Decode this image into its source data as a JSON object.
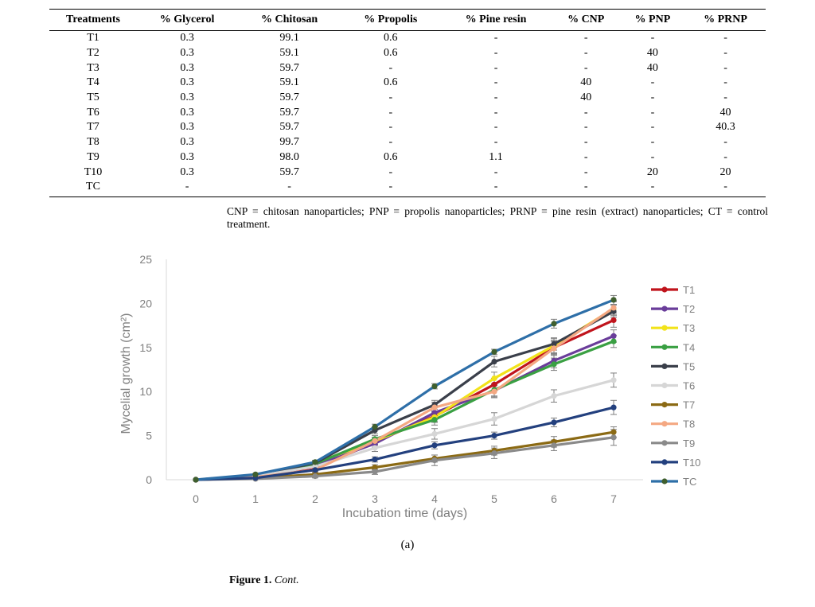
{
  "table": {
    "headers": [
      "Treatments",
      "% Glycerol",
      "% Chitosan",
      "% Propolis",
      "% Pine resin",
      "% CNP",
      "% PNP",
      "% PRNP"
    ],
    "rows": [
      [
        "T1",
        "0.3",
        "99.1",
        "0.6",
        "-",
        "-",
        "-",
        "-"
      ],
      [
        "T2",
        "0.3",
        "59.1",
        "0.6",
        "-",
        "-",
        "40",
        "-"
      ],
      [
        "T3",
        "0.3",
        "59.7",
        "-",
        "-",
        "-",
        "40",
        "-"
      ],
      [
        "T4",
        "0.3",
        "59.1",
        "0.6",
        "-",
        "40",
        "-",
        "-"
      ],
      [
        "T5",
        "0.3",
        "59.7",
        "-",
        "-",
        "40",
        "-",
        "-"
      ],
      [
        "T6",
        "0.3",
        "59.7",
        "-",
        "-",
        "-",
        "-",
        "40"
      ],
      [
        "T7",
        "0.3",
        "59.7",
        "-",
        "-",
        "-",
        "-",
        "40.3"
      ],
      [
        "T8",
        "0.3",
        "99.7",
        "-",
        "-",
        "-",
        "-",
        "-"
      ],
      [
        "T9",
        "0.3",
        "98.0",
        "0.6",
        "1.1",
        "-",
        "-",
        "-"
      ],
      [
        "T10",
        "0.3",
        "59.7",
        "-",
        "-",
        "-",
        "20",
        "20"
      ],
      [
        "TC",
        "-",
        "-",
        "-",
        "-",
        "-",
        "-",
        "-"
      ]
    ],
    "note": "CNP = chitosan nanoparticles; PNP = propolis nanoparticles; PRNP = pine resin (extract) nanoparticles; CT = control treatment."
  },
  "chart_data": {
    "type": "line",
    "xlabel": "Incubation time (days)",
    "ylabel": "Mycelial growth (cm²)",
    "xlim": [
      0,
      7
    ],
    "ylim": [
      0,
      25
    ],
    "x_ticks": [
      0,
      1,
      2,
      3,
      4,
      5,
      6,
      7
    ],
    "y_ticks": [
      0,
      5,
      10,
      15,
      20,
      25
    ],
    "grid": false,
    "legend_position": "right",
    "x": [
      0,
      1,
      2,
      3,
      4,
      5,
      6,
      7
    ],
    "series": [
      {
        "name": "T1",
        "color": "#c0141c",
        "values": [
          0,
          0.3,
          1.2,
          4.3,
          7.2,
          10.8,
          15.0,
          18.1
        ],
        "errors": [
          0,
          0.1,
          0.2,
          0.4,
          0.6,
          0.7,
          0.8,
          0.8
        ]
      },
      {
        "name": "T2",
        "color": "#6a3d9a",
        "values": [
          0,
          0.3,
          1.6,
          4.1,
          7.6,
          10.1,
          13.5,
          16.3
        ],
        "errors": [
          0,
          0.1,
          0.2,
          0.4,
          0.6,
          0.7,
          0.8,
          0.7
        ]
      },
      {
        "name": "T3",
        "color": "#f2e31a",
        "values": [
          0,
          0.4,
          1.9,
          4.4,
          7.1,
          11.5,
          15.2,
          19.4
        ],
        "errors": [
          0,
          0.1,
          0.2,
          0.4,
          0.6,
          0.7,
          0.8,
          0.8
        ]
      },
      {
        "name": "T4",
        "color": "#3aa043",
        "values": [
          0,
          0.4,
          1.8,
          4.6,
          6.8,
          10.2,
          13.1,
          15.7
        ],
        "errors": [
          0,
          0.1,
          0.2,
          0.4,
          0.6,
          0.7,
          0.7,
          0.7
        ]
      },
      {
        "name": "T5",
        "color": "#3a3f4a",
        "values": [
          0,
          0.5,
          1.9,
          5.6,
          8.5,
          13.4,
          15.4,
          19.1
        ],
        "errors": [
          0,
          0.1,
          0.2,
          0.4,
          0.5,
          0.6,
          0.7,
          0.7
        ]
      },
      {
        "name": "T6",
        "color": "#d6d6d6",
        "values": [
          0,
          0.4,
          1.5,
          3.6,
          5.2,
          6.9,
          9.5,
          11.3
        ],
        "errors": [
          0,
          0.1,
          0.2,
          0.4,
          0.6,
          0.7,
          0.7,
          0.8
        ]
      },
      {
        "name": "T7",
        "color": "#8b6a14",
        "values": [
          0,
          0.2,
          0.6,
          1.4,
          2.4,
          3.3,
          4.3,
          5.4
        ],
        "errors": [
          0,
          0.1,
          0.2,
          0.3,
          0.4,
          0.5,
          0.6,
          0.6
        ]
      },
      {
        "name": "T8",
        "color": "#f4a882",
        "values": [
          0,
          0.3,
          1.1,
          4.4,
          8.2,
          10.0,
          14.9,
          19.5
        ],
        "errors": [
          0,
          0.1,
          0.2,
          0.4,
          0.6,
          0.7,
          0.8,
          0.8
        ]
      },
      {
        "name": "T9",
        "color": "#8a8a8a",
        "values": [
          0,
          0.1,
          0.4,
          0.9,
          2.2,
          3.0,
          3.9,
          4.8
        ],
        "errors": [
          0,
          0.1,
          0.2,
          0.3,
          0.6,
          0.6,
          0.6,
          0.9
        ]
      },
      {
        "name": "T10",
        "color": "#23407e",
        "values": [
          0,
          0.2,
          1.1,
          2.3,
          3.9,
          5.0,
          6.5,
          8.2
        ],
        "errors": [
          0,
          0.1,
          0.2,
          0.3,
          0.4,
          0.4,
          0.5,
          0.8
        ]
      },
      {
        "name": "TC",
        "color": "#2e6fa8",
        "marker_color": "#3f5f2e",
        "values": [
          0,
          0.6,
          2.0,
          6.0,
          10.6,
          14.5,
          17.7,
          20.4
        ],
        "errors": [
          0,
          0.1,
          0.2,
          0.3,
          0.3,
          0.3,
          0.5,
          0.5
        ]
      }
    ]
  },
  "figure": {
    "panel_label": "(a)",
    "caption_number": "Figure 1.",
    "caption_text": "Cont."
  }
}
